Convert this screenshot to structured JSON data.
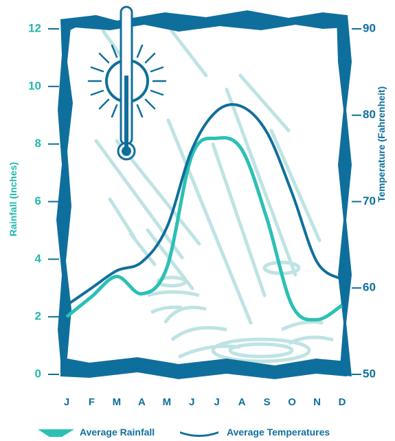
{
  "chart_data": {
    "type": "line",
    "categories": [
      "J",
      "F",
      "M",
      "A",
      "M",
      "J",
      "J",
      "A",
      "S",
      "O",
      "N",
      "D"
    ],
    "series": [
      {
        "name": "Average Rainfall",
        "axis": "left",
        "color": "#2cc0b4",
        "values": [
          2.0,
          2.7,
          3.4,
          2.8,
          3.7,
          7.6,
          8.2,
          7.8,
          5.4,
          2.4,
          1.9,
          2.4
        ]
      },
      {
        "name": "Average Temperatures",
        "axis": "right",
        "color": "#0f6f9c",
        "values": [
          58,
          60,
          62,
          63,
          67,
          76,
          80.5,
          81,
          78,
          71,
          63,
          61
        ]
      }
    ],
    "left_axis": {
      "label": "Rainfall (Inches)",
      "range": [
        0,
        12
      ],
      "ticks": [
        0,
        2,
        4,
        6,
        8,
        10,
        12
      ],
      "color": "#21b8ad"
    },
    "right_axis": {
      "label": "Temperature (Fahrenheit)",
      "range": [
        50,
        90
      ],
      "ticks": [
        50,
        60,
        70,
        80,
        90
      ],
      "color": "#0f6f9c"
    },
    "legend_position": "bottom",
    "frame_color": "#0f6f9c",
    "decoration_icons": [
      "sun-icon",
      "thermometer-icon",
      "rain-streaks",
      "puddle-ripples"
    ]
  }
}
